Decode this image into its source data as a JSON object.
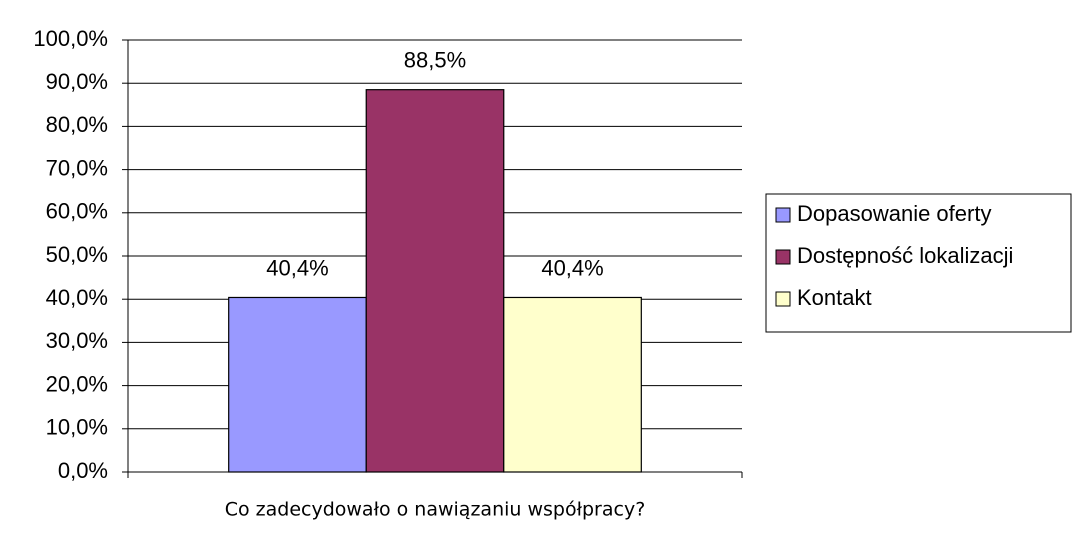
{
  "chart_data": {
    "type": "bar",
    "categories": [
      "Co zadecydowało o nawiązaniu współpracy?"
    ],
    "series": [
      {
        "name": "Dopasowanie oferty",
        "color": "#9999ff",
        "values": [
          40.4
        ],
        "value_labels": [
          "40,4%"
        ]
      },
      {
        "name": "Dostępność lokalizacji",
        "color": "#993366",
        "values": [
          88.5
        ],
        "value_labels": [
          "88,5%"
        ]
      },
      {
        "name": "Kontakt",
        "color": "#ffffcc",
        "values": [
          40.4
        ],
        "value_labels": [
          "40,4%"
        ]
      }
    ],
    "ylim": [
      0,
      100
    ],
    "yticks": [
      {
        "value": 0,
        "label": "0,0%"
      },
      {
        "value": 10,
        "label": "10,0%"
      },
      {
        "value": 20,
        "label": "20,0%"
      },
      {
        "value": 30,
        "label": "30,0%"
      },
      {
        "value": 40,
        "label": "40,0%"
      },
      {
        "value": 50,
        "label": "50,0%"
      },
      {
        "value": 60,
        "label": "60,0%"
      },
      {
        "value": 70,
        "label": "70,0%"
      },
      {
        "value": 80,
        "label": "80,0%"
      },
      {
        "value": 90,
        "label": "90,0%"
      },
      {
        "value": 100,
        "label": "100,0%"
      }
    ],
    "grid": true,
    "legend": "right"
  }
}
